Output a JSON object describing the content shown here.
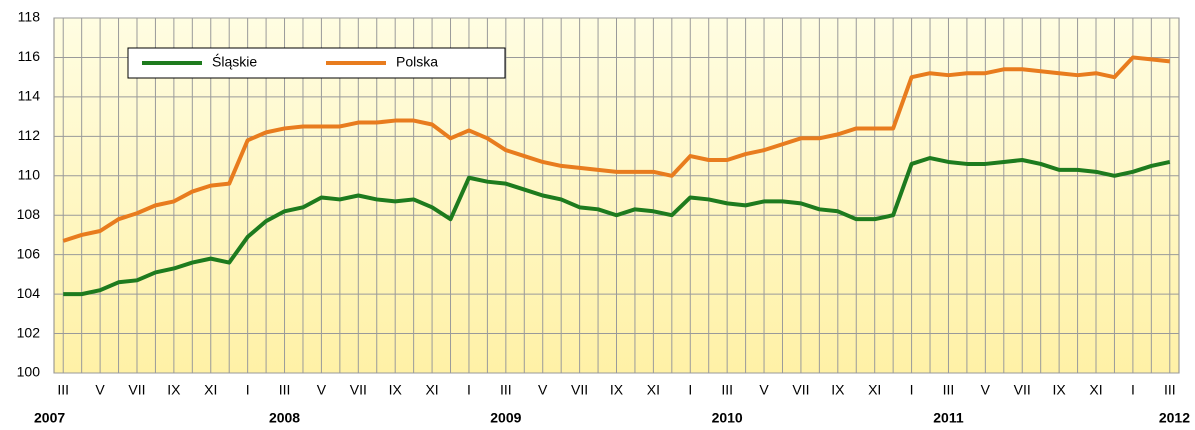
{
  "chart_data": {
    "type": "line",
    "categories": [
      "III",
      null,
      "V",
      null,
      "VII",
      null,
      "IX",
      null,
      "XI",
      null,
      "I",
      null,
      "III",
      null,
      "V",
      null,
      "VII",
      null,
      "IX",
      null,
      "XI",
      null,
      "I",
      null,
      "III",
      null,
      "V",
      null,
      "VII",
      null,
      "IX",
      null,
      "XI",
      null,
      "I",
      null,
      "III",
      null,
      "V",
      null,
      "VII",
      null,
      "IX",
      null,
      "XI",
      null,
      "I",
      null,
      "III",
      null,
      "V",
      null,
      "VII",
      null,
      "IX",
      null,
      "XI",
      null,
      "I",
      null,
      "III"
    ],
    "year_labels": [
      "2007",
      "2008",
      "2009",
      "2010",
      "2011",
      "2012"
    ],
    "series": [
      {
        "name": "Śląskie",
        "color": "#1e7b1e",
        "values": [
          104.0,
          104.0,
          104.2,
          104.6,
          104.7,
          105.1,
          105.3,
          105.6,
          105.8,
          105.6,
          106.9,
          107.7,
          108.2,
          108.4,
          108.9,
          108.8,
          109.0,
          108.8,
          108.7,
          108.8,
          108.4,
          107.8,
          109.9,
          109.7,
          109.6,
          109.3,
          109.0,
          108.8,
          108.4,
          108.3,
          108.0,
          108.3,
          108.2,
          108.0,
          108.9,
          108.8,
          108.6,
          108.5,
          108.7,
          108.7,
          108.6,
          108.3,
          108.2,
          107.8,
          107.8,
          108.0,
          110.6,
          110.9,
          110.7,
          110.6,
          110.6,
          110.7,
          110.8,
          110.6,
          110.3,
          110.3,
          110.2,
          110.0,
          110.2,
          110.5,
          110.7
        ]
      },
      {
        "name": "Polska",
        "color": "#e87c1e",
        "values": [
          106.7,
          107.0,
          107.2,
          107.8,
          108.1,
          108.5,
          108.7,
          109.2,
          109.5,
          109.6,
          111.8,
          112.2,
          112.4,
          112.5,
          112.5,
          112.5,
          112.7,
          112.7,
          112.8,
          112.8,
          112.6,
          111.9,
          112.3,
          111.9,
          111.3,
          111.0,
          110.7,
          110.5,
          110.4,
          110.3,
          110.2,
          110.2,
          110.2,
          110.0,
          111.0,
          110.8,
          110.8,
          111.1,
          111.3,
          111.6,
          111.9,
          111.9,
          112.1,
          112.4,
          112.4,
          112.4,
          115.0,
          115.2,
          115.1,
          115.2,
          115.2,
          115.4,
          115.4,
          115.3,
          115.2,
          115.1,
          115.2,
          115.0,
          116.0,
          115.9,
          115.8
        ]
      }
    ],
    "ylim": [
      100,
      118
    ],
    "yticks": [
      100,
      102,
      104,
      106,
      108,
      110,
      112,
      114,
      116,
      118
    ],
    "grid": true,
    "legend": "upper left"
  }
}
